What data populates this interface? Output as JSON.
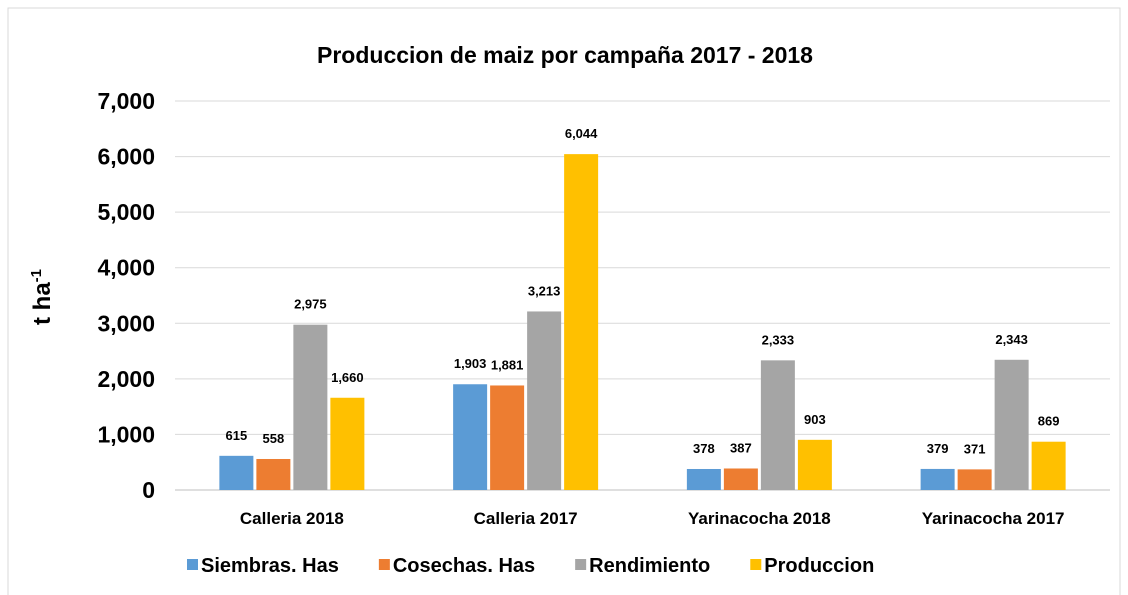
{
  "chart_data": {
    "type": "bar",
    "title": "Produccion de maiz por campaña 2017 - 2018",
    "y_label": {
      "base": "t ha",
      "sup": "-1"
    },
    "categories": [
      "Calleria 2018",
      "Calleria 2017",
      "Yarinacocha 2018",
      "Yarinacocha 2017"
    ],
    "series": [
      {
        "name": "Siembras. Has",
        "color": "#5b9bd5",
        "values": [
          615,
          1903,
          378,
          379
        ],
        "value_labels": [
          "615",
          "1,903",
          "378",
          "379"
        ]
      },
      {
        "name": "Cosechas. Has",
        "color": "#ed7d31",
        "values": [
          558,
          1881,
          387,
          371
        ],
        "value_labels": [
          "558",
          "1,881",
          "387",
          "371"
        ]
      },
      {
        "name": "Rendimiento",
        "color": "#a5a5a5",
        "values": [
          2975,
          3213,
          2333,
          2343
        ],
        "value_labels": [
          "2,975",
          "3,213",
          "2,333",
          "2,343"
        ]
      },
      {
        "name": "Produccion",
        "color": "#ffc000",
        "values": [
          1660,
          6044,
          903,
          869
        ],
        "value_labels": [
          "1,660",
          "6,044",
          "903",
          "869"
        ]
      }
    ],
    "ylim": [
      0,
      7000
    ],
    "yticks": [
      0,
      {
        "value": 1000,
        "label": "1,000"
      },
      {
        "value": 2000,
        "label": "2,000"
      },
      {
        "value": 3000,
        "label": "3,000"
      },
      {
        "value": 4000,
        "label": "4,000"
      },
      {
        "value": 5000,
        "label": "5,000"
      },
      {
        "value": 6000,
        "label": "6,000"
      },
      {
        "value": 7000,
        "label": "7,000"
      }
    ],
    "grid": true,
    "legend": "bottom"
  }
}
